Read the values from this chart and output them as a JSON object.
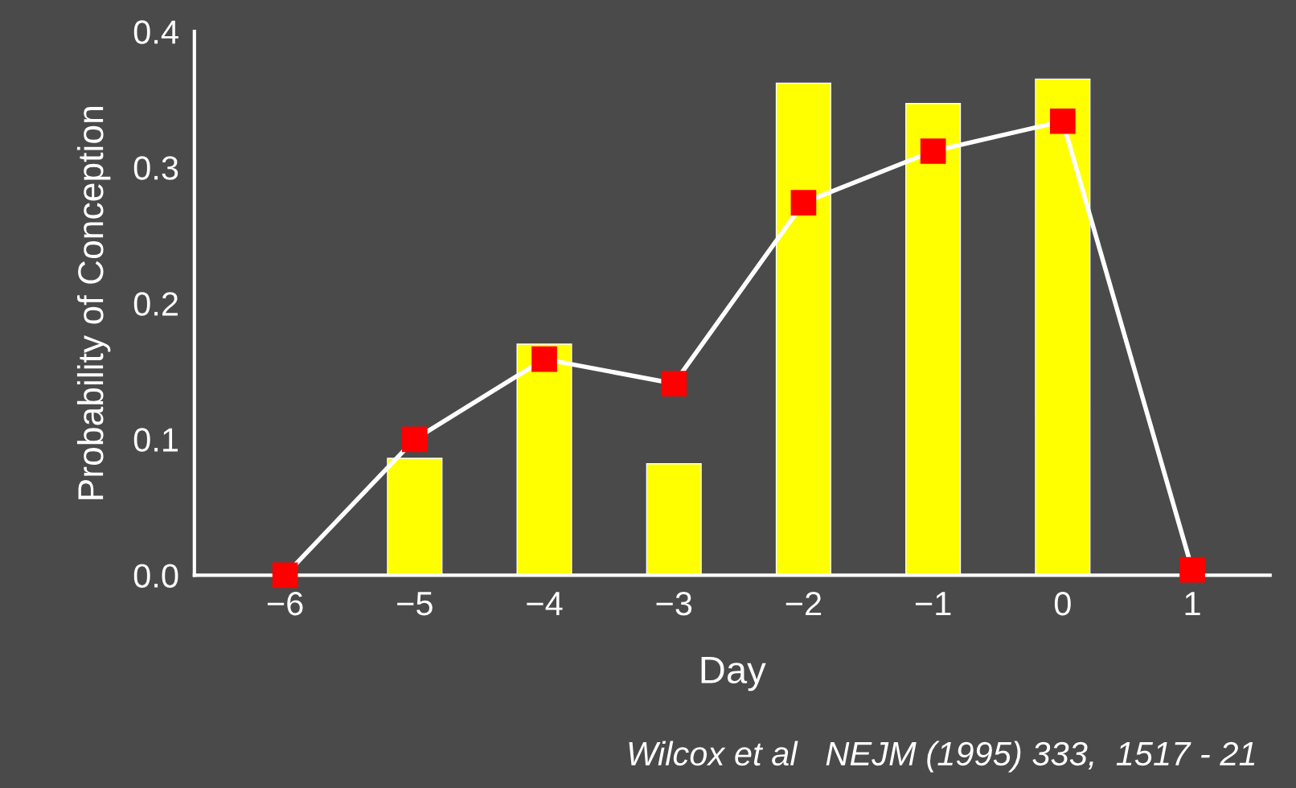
{
  "chart_data": {
    "type": "bar",
    "xlabel": "Day",
    "ylabel": "Probability of Conception",
    "categories": [
      "−6",
      "−5",
      "−4",
      "−3",
      "−2",
      "−1",
      "0",
      "1"
    ],
    "series": [
      {
        "color": "#ffff00",
        "values": [
          null,
          0.086,
          0.17,
          0.082,
          0.362,
          0.347,
          0.365,
          null
        ]
      },
      {
        "type": "line",
        "color": "#ffffff",
        "colors": [
          "#ff0000",
          "#ff0000",
          "#ff0000",
          "#ff0000",
          "#ff0000",
          "#ff0000",
          "#ff0000",
          "#ff0000"
        ],
        "marker": "square",
        "values": [
          0.0,
          0.1,
          0.159,
          0.141,
          0.274,
          0.312,
          0.334,
          0.004
        ]
      }
    ],
    "ylim": [
      0,
      0.4
    ],
    "yticks": [
      {
        "value": 0,
        "label": "0.0"
      },
      0.1,
      0.2,
      0.3,
      0.4
    ],
    "grid": false,
    "legend": false,
    "annotations": [
      "Wilcox et al   NEJM (1995) 333,  1517 - 21"
    ]
  }
}
